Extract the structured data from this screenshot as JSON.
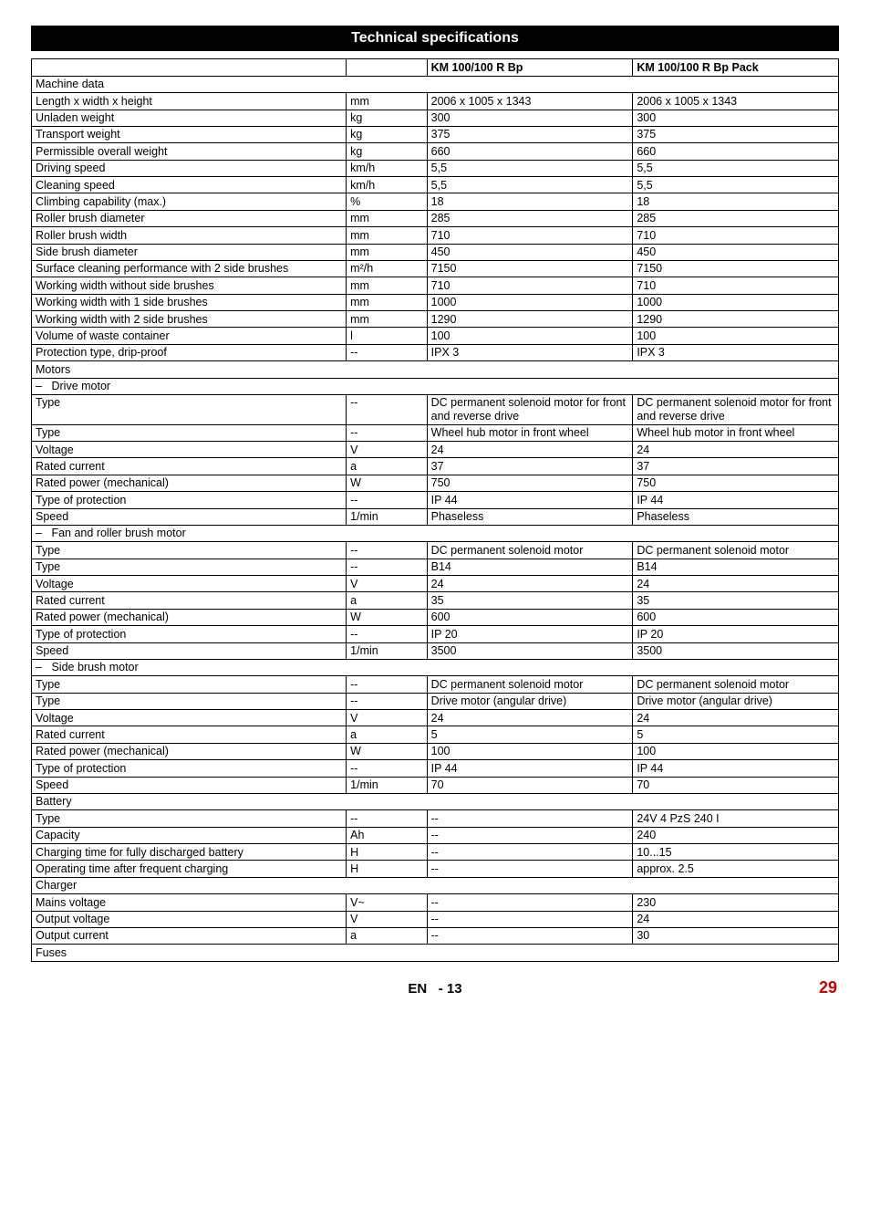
{
  "page": {
    "title": "Technical specifications",
    "footer_lang": "EN",
    "footer_sep": "-",
    "footer_local_page": "13",
    "footer_global_page": "29"
  },
  "header_row": {
    "col_a": "KM 100/100 R Bp",
    "col_b": "KM 100/100 R Bp Pack"
  },
  "sections": [
    {
      "type": "section",
      "label": "Machine data"
    },
    {
      "type": "row",
      "label": "Length x width x height",
      "unit": "mm",
      "a": "2006 x 1005 x 1343",
      "b": "2006 x 1005 x 1343"
    },
    {
      "type": "row",
      "label": "Unladen weight",
      "unit": "kg",
      "a": "300",
      "b": "300"
    },
    {
      "type": "row",
      "label": "Transport weight",
      "unit": "kg",
      "a": "375",
      "b": "375"
    },
    {
      "type": "row",
      "label": "Permissible overall weight",
      "unit": "kg",
      "a": "660",
      "b": "660"
    },
    {
      "type": "row",
      "label": "Driving speed",
      "unit": "km/h",
      "a": "5,5",
      "b": "5,5"
    },
    {
      "type": "row",
      "label": "Cleaning speed",
      "unit": "km/h",
      "a": "5,5",
      "b": "5,5"
    },
    {
      "type": "row",
      "label": "Climbing capability (max.)",
      "unit": "%",
      "a": "18",
      "b": "18"
    },
    {
      "type": "row",
      "label": "Roller brush diameter",
      "unit": "mm",
      "a": "285",
      "b": "285"
    },
    {
      "type": "row",
      "label": "Roller brush width",
      "unit": "mm",
      "a": "710",
      "b": "710"
    },
    {
      "type": "row",
      "label": "Side brush diameter",
      "unit": "mm",
      "a": "450",
      "b": "450"
    },
    {
      "type": "row",
      "label": "Surface cleaning performance with 2 side brushes",
      "unit": "m²/h",
      "a": "7150",
      "b": "7150"
    },
    {
      "type": "row",
      "label": "Working width without side brushes",
      "unit": "mm",
      "a": "710",
      "b": "710"
    },
    {
      "type": "row",
      "label": "Working width with 1 side brushes",
      "unit": "mm",
      "a": "1000",
      "b": "1000"
    },
    {
      "type": "row",
      "label": "Working width with 2 side brushes",
      "unit": "mm",
      "a": "1290",
      "b": "1290"
    },
    {
      "type": "row",
      "label": "Volume of waste container",
      "unit": "l",
      "a": "100",
      "b": "100"
    },
    {
      "type": "row",
      "label": "Protection type, drip-proof",
      "unit": "--",
      "a": "IPX 3",
      "b": "IPX 3"
    },
    {
      "type": "section",
      "label": "Motors"
    },
    {
      "type": "sub",
      "label": "Drive motor"
    },
    {
      "type": "row",
      "label": "Type",
      "unit": "--",
      "a": "DC permanent solenoid motor for front and reverse drive",
      "b": "DC permanent solenoid motor for front and reverse drive"
    },
    {
      "type": "row",
      "label": "Type",
      "unit": "--",
      "a": "Wheel hub motor in front wheel",
      "b": "Wheel hub motor in front wheel"
    },
    {
      "type": "row",
      "label": "Voltage",
      "unit": "V",
      "a": "24",
      "b": "24"
    },
    {
      "type": "row",
      "label": "Rated current",
      "unit": "a",
      "a": "37",
      "b": "37"
    },
    {
      "type": "row",
      "label": "Rated power (mechanical)",
      "unit": "W",
      "a": "750",
      "b": "750"
    },
    {
      "type": "row",
      "label": "Type of protection",
      "unit": "--",
      "a": "IP 44",
      "b": "IP 44"
    },
    {
      "type": "row",
      "label": "Speed",
      "unit": "1/min",
      "a": "Phaseless",
      "b": "Phaseless"
    },
    {
      "type": "sub",
      "label": "Fan and roller brush motor"
    },
    {
      "type": "row",
      "label": "Type",
      "unit": "--",
      "a": "DC permanent solenoid motor",
      "b": "DC permanent solenoid motor"
    },
    {
      "type": "row",
      "label": "Type",
      "unit": "--",
      "a": "B14",
      "b": "B14"
    },
    {
      "type": "row",
      "label": "Voltage",
      "unit": "V",
      "a": "24",
      "b": "24"
    },
    {
      "type": "row",
      "label": "Rated current",
      "unit": "a",
      "a": "35",
      "b": "35"
    },
    {
      "type": "row",
      "label": "Rated power (mechanical)",
      "unit": "W",
      "a": "600",
      "b": "600"
    },
    {
      "type": "row",
      "label": "Type of protection",
      "unit": "--",
      "a": "IP 20",
      "b": "IP 20"
    },
    {
      "type": "row",
      "label": "Speed",
      "unit": "1/min",
      "a": "3500",
      "b": "3500"
    },
    {
      "type": "sub",
      "label": "Side brush motor"
    },
    {
      "type": "row",
      "label": "Type",
      "unit": "--",
      "a": "DC permanent solenoid motor",
      "b": "DC permanent solenoid motor"
    },
    {
      "type": "row",
      "label": "Type",
      "unit": "--",
      "a": "Drive motor (angular drive)",
      "b": "Drive motor (angular drive)"
    },
    {
      "type": "row",
      "label": "Voltage",
      "unit": "V",
      "a": "24",
      "b": "24"
    },
    {
      "type": "row",
      "label": "Rated current",
      "unit": "a",
      "a": "5",
      "b": "5"
    },
    {
      "type": "row",
      "label": "Rated power (mechanical)",
      "unit": "W",
      "a": "100",
      "b": "100"
    },
    {
      "type": "row",
      "label": "Type of protection",
      "unit": "--",
      "a": "IP 44",
      "b": "IP 44"
    },
    {
      "type": "row",
      "label": "Speed",
      "unit": "1/min",
      "a": "70",
      "b": "70"
    },
    {
      "type": "section",
      "label": "Battery"
    },
    {
      "type": "row",
      "label": "Type",
      "unit": "--",
      "a": "--",
      "b": "24V 4 PzS 240 I"
    },
    {
      "type": "row",
      "label": "Capacity",
      "unit": "Ah",
      "a": "--",
      "b": "240"
    },
    {
      "type": "row",
      "label": "Charging time for fully discharged battery",
      "unit": "H",
      "a": "--",
      "b": "10...15"
    },
    {
      "type": "row",
      "label": "Operating time after frequent charging",
      "unit": "H",
      "a": "--",
      "b": "approx. 2.5"
    },
    {
      "type": "section",
      "label": "Charger"
    },
    {
      "type": "row",
      "label": "Mains voltage",
      "unit": "V~",
      "a": "--",
      "b": "230"
    },
    {
      "type": "row",
      "label": "Output voltage",
      "unit": "V",
      "a": "--",
      "b": "24"
    },
    {
      "type": "row",
      "label": "Output current",
      "unit": "a",
      "a": "--",
      "b": "30"
    },
    {
      "type": "section",
      "label": "Fuses"
    }
  ]
}
